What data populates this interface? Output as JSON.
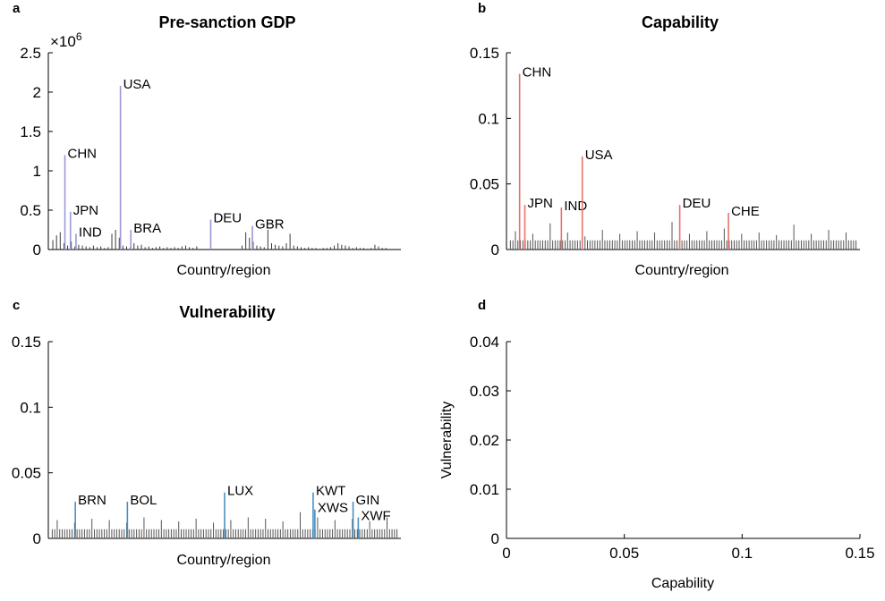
{
  "chart_data": [
    {
      "panel": "a",
      "type": "bar",
      "title": "Pre-sanction GDP",
      "xlabel": "Country/region",
      "ylabel": "",
      "exponent_label": "×10^6",
      "ylim": [
        0,
        2.5
      ],
      "yticks": [
        "0",
        "0.5",
        "1",
        "1.5",
        "2",
        "2.5"
      ],
      "baseline_color": "#3a3a3a",
      "highlight_color": "#9999d6",
      "baseline_values": [
        0.12,
        0.18,
        0.22,
        0.08,
        0.05,
        0.1,
        0.04,
        0.06,
        0.05,
        0.04,
        0.03,
        0.05,
        0.03,
        0.04,
        0.02,
        0.03,
        0.2,
        0.25,
        0.15,
        0.05,
        0.04,
        0.03,
        0.08,
        0.05,
        0.06,
        0.03,
        0.04,
        0.02,
        0.03,
        0.04,
        0.02,
        0.03,
        0.02,
        0.03,
        0.02,
        0.04,
        0.05,
        0.03,
        0.02,
        0.04,
        0.05,
        0.22,
        0.15,
        0.1,
        0.05,
        0.04,
        0.03,
        0.25,
        0.08,
        0.06,
        0.05,
        0.04,
        0.08,
        0.2,
        0.05,
        0.04,
        0.03,
        0.02,
        0.03,
        0.02,
        0.02,
        0.01,
        0.02,
        0.02,
        0.03,
        0.05,
        0.08,
        0.06,
        0.05,
        0.04,
        0.02,
        0.03,
        0.02,
        0.02,
        0.01,
        0.02,
        0.06,
        0.04,
        0.02,
        0.02
      ],
      "highlights": [
        {
          "label": "CHN",
          "value": 1.2,
          "pos": 0.04
        },
        {
          "label": "JPN",
          "value": 0.48,
          "pos": 0.056
        },
        {
          "label": "IND",
          "value": 0.2,
          "pos": 0.072
        },
        {
          "label": "USA",
          "value": 2.08,
          "pos": 0.2
        },
        {
          "label": "BRA",
          "value": 0.25,
          "pos": 0.23
        },
        {
          "label": "DEU",
          "value": 0.38,
          "pos": 0.46
        },
        {
          "label": "GBR",
          "value": 0.3,
          "pos": 0.58
        }
      ]
    },
    {
      "panel": "b",
      "type": "bar",
      "title": "Capability",
      "xlabel": "Country/region",
      "ylabel": "",
      "ylim": [
        0,
        0.15
      ],
      "yticks": [
        "0",
        "0.05",
        "0.1",
        "0.15"
      ],
      "baseline_color": "#555555",
      "highlight_color": "#e8726a",
      "baseline_count": 140,
      "baseline_level": 0.007,
      "baseline_spikes": [
        0.014,
        0.012,
        0.02,
        0.013,
        0.01,
        0.015,
        0.012,
        0.014,
        0.013,
        0.021,
        0.012,
        0.014,
        0.016,
        0.012,
        0.013,
        0.011,
        0.019,
        0.012,
        0.015,
        0.013
      ],
      "highlights": [
        {
          "label": "CHN",
          "value": 0.134,
          "pos": 0.03
        },
        {
          "label": "JPN",
          "value": 0.034,
          "pos": 0.045
        },
        {
          "label": "IND",
          "value": 0.032,
          "pos": 0.15
        },
        {
          "label": "USA",
          "value": 0.071,
          "pos": 0.21
        },
        {
          "label": "DEU",
          "value": 0.034,
          "pos": 0.49
        },
        {
          "label": "CHE",
          "value": 0.028,
          "pos": 0.63
        }
      ]
    },
    {
      "panel": "c",
      "type": "bar",
      "title": "Vulnerability",
      "xlabel": "Country/region",
      "ylabel": "",
      "ylim": [
        0,
        0.15
      ],
      "yticks": [
        "0",
        "0.05",
        "0.1",
        "0.15"
      ],
      "baseline_color": "#555555",
      "highlight_color": "#4a8fc2",
      "baseline_count": 140,
      "baseline_level": 0.007,
      "baseline_spikes": [
        0.014,
        0.012,
        0.015,
        0.014,
        0.012,
        0.016,
        0.014,
        0.013,
        0.015,
        0.012,
        0.014,
        0.016,
        0.015,
        0.013,
        0.02,
        0.016,
        0.014,
        0.015,
        0.013,
        0.016
      ],
      "highlights": [
        {
          "label": "BRN",
          "value": 0.028,
          "pos": 0.07
        },
        {
          "label": "BOL",
          "value": 0.028,
          "pos": 0.22
        },
        {
          "label": "LUX",
          "value": 0.035,
          "pos": 0.5
        },
        {
          "label": "KWT",
          "value": 0.035,
          "pos": 0.755
        },
        {
          "label": "XWS",
          "value": 0.022,
          "pos": 0.76
        },
        {
          "label": "GIN",
          "value": 0.028,
          "pos": 0.87
        },
        {
          "label": "XWF",
          "value": 0.016,
          "pos": 0.885
        }
      ]
    },
    {
      "panel": "d",
      "type": "scatter",
      "title": "",
      "xlabel": "Capability",
      "ylabel": "Vulnerability",
      "xlim": [
        0,
        0.15
      ],
      "ylim": [
        0,
        0.04
      ],
      "xticks": [
        "0",
        "0.05",
        "0.1",
        "0.15"
      ],
      "yticks": [
        "0",
        "0.01",
        "0.02",
        "0.03",
        "0.04"
      ],
      "points": []
    }
  ]
}
